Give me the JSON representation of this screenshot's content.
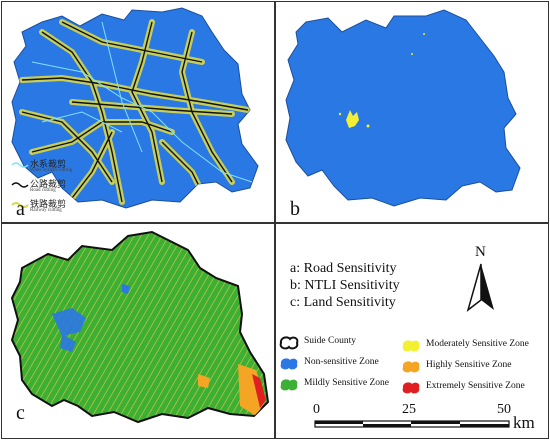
{
  "panels": {
    "a": {
      "label": "a"
    },
    "b": {
      "label": "b"
    },
    "c": {
      "label": "c"
    }
  },
  "legend_a": [
    {
      "cn": "水系裁剪",
      "en": "Water system cutting",
      "color": "#7fe0ff",
      "icon": "water-line-icon"
    },
    {
      "cn": "公路裁剪",
      "en": "Road cutting",
      "color": "#111111",
      "icon": "road-line-icon"
    },
    {
      "cn": "铁路裁剪",
      "en": "Railway cutting",
      "color": "#d8d84a",
      "icon": "railway-line-icon"
    }
  ],
  "sensitivity_labels": [
    "a: Road Sensitivity",
    "b: NTLI Sensitivity",
    "c: Land Sensitivity"
  ],
  "north": {
    "letter": "N"
  },
  "legend": {
    "left": [
      {
        "label": "Suide County",
        "color": "#ffffff",
        "icon": "county-outline-icon"
      },
      {
        "label": "Non-sensitive Zone",
        "color": "#2a78e4",
        "icon": "blob-icon"
      },
      {
        "label": "Mildly Sensitive Zone",
        "color": "#3cb034",
        "icon": "blob-icon"
      }
    ],
    "right": [
      {
        "label": "Moderately Sensitive Zone",
        "color": "#f2f030",
        "icon": "blob-icon"
      },
      {
        "label": "Highly Sensitive Zone",
        "color": "#f5a524",
        "icon": "blob-icon"
      },
      {
        "label": "Extremely Sensitive Zone",
        "color": "#e02020",
        "icon": "blob-icon"
      }
    ]
  },
  "scale": {
    "ticks": [
      "0",
      "25",
      "50"
    ],
    "unit": "km"
  },
  "colors": {
    "non_sensitive": "#2a78e4",
    "mild": "#3cb034",
    "moderate": "#f2f030",
    "high": "#f5a524",
    "extreme": "#e02020"
  }
}
